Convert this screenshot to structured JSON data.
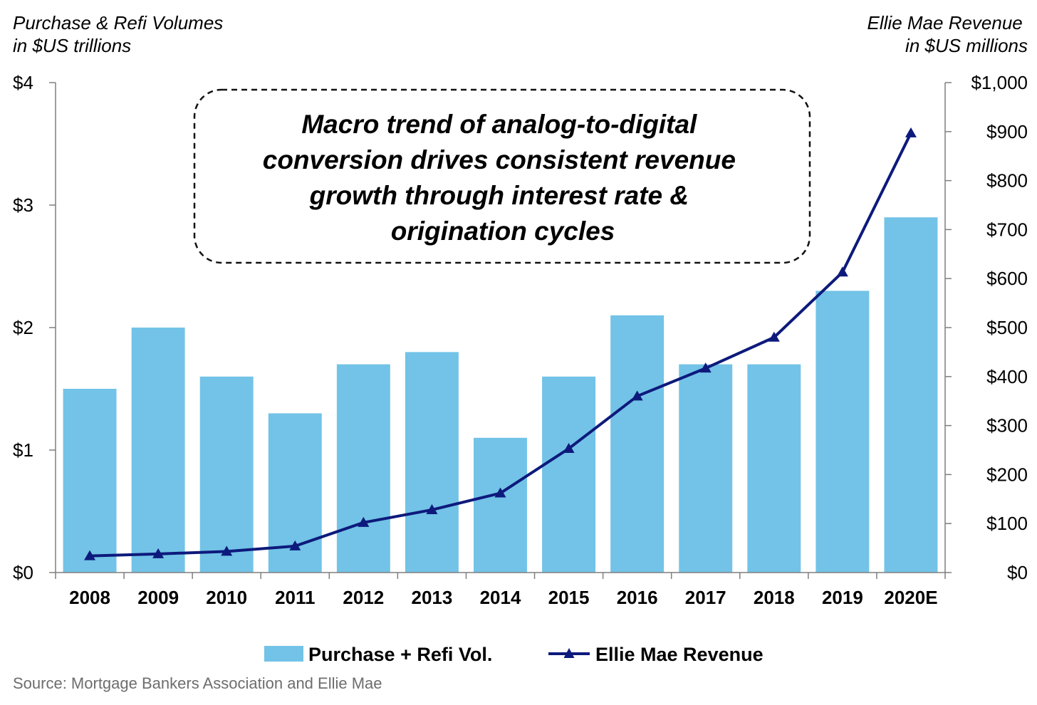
{
  "chart_data": {
    "type": "bar",
    "title": "",
    "annotation": [
      "Macro trend of analog-to-digital",
      "conversion drives consistent revenue",
      "growth through interest rate &",
      "origination cycles"
    ],
    "left_axis_title": [
      "Purchase & Refi Volumes",
      "in $US trillions"
    ],
    "right_axis_title": [
      "Ellie Mae Revenue",
      "in $US millions"
    ],
    "categories": [
      "2008",
      "2009",
      "2010",
      "2011",
      "2012",
      "2013",
      "2014",
      "2015",
      "2016",
      "2017",
      "2018",
      "2019",
      "2020E"
    ],
    "series": [
      {
        "name": "Purchase + Refi Vol.",
        "type": "bar",
        "axis": "left",
        "color": "#72c3e7",
        "values": [
          1.5,
          2.0,
          1.6,
          1.3,
          1.7,
          1.8,
          1.1,
          1.6,
          2.1,
          1.7,
          1.7,
          2.3,
          2.9
        ]
      },
      {
        "name": "Ellie Mae Revenue",
        "type": "line",
        "marker": "triangle",
        "axis": "right",
        "color": "#0d1a7c",
        "values": [
          34,
          38,
          43,
          54,
          102,
          128,
          162,
          253,
          360,
          417,
          480,
          613,
          897
        ]
      }
    ],
    "left_axis": {
      "ylim": [
        0,
        4
      ],
      "ticks": [
        0,
        1,
        2,
        3,
        4
      ],
      "tick_labels": [
        "$0",
        "$1",
        "$2",
        "$3",
        "$4"
      ]
    },
    "right_axis": {
      "ylim": [
        0,
        1000
      ],
      "ticks": [
        0,
        100,
        200,
        300,
        400,
        500,
        600,
        700,
        800,
        900,
        1000
      ],
      "tick_labels": [
        "$0",
        "$100",
        "$200",
        "$300",
        "$400",
        "$500",
        "$600",
        "$700",
        "$800",
        "$900",
        "$1,000"
      ]
    },
    "grid": false,
    "legend_position": "bottom-center",
    "source": "Source: Mortgage Bankers Association and Ellie Mae"
  }
}
